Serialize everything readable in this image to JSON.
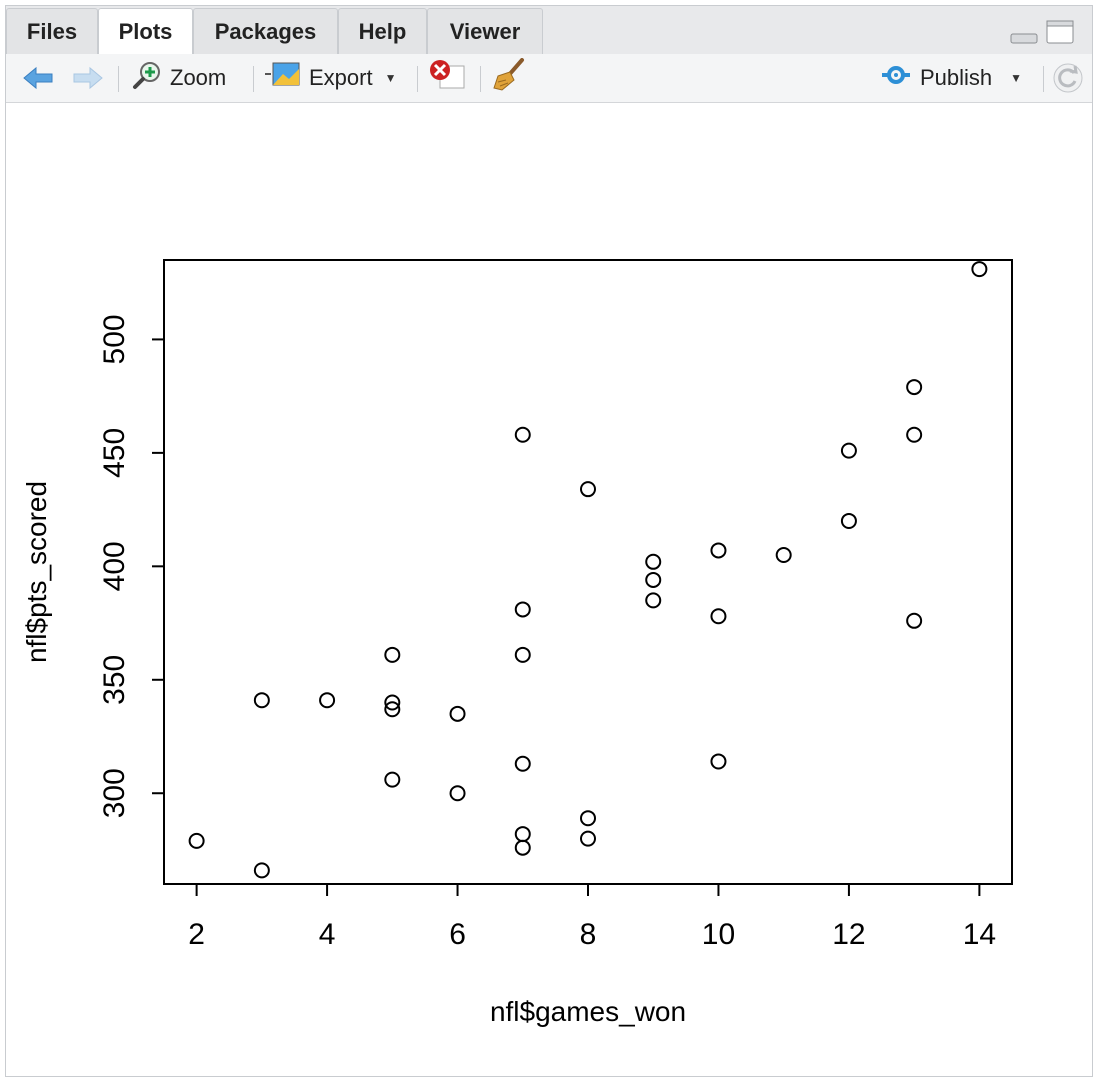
{
  "tabs": [
    "Files",
    "Plots",
    "Packages",
    "Help",
    "Viewer"
  ],
  "active_tab": "Plots",
  "toolbar": {
    "zoom_label": "Zoom",
    "export_label": "Export",
    "publish_label": "Publish"
  },
  "chart_data": {
    "type": "scatter",
    "xlabel": "nfl$games_won",
    "ylabel": "nfl$pts_scored",
    "xlim": [
      1.5,
      14.5
    ],
    "ylim": [
      260,
      535
    ],
    "xticks": [
      2,
      4,
      6,
      8,
      10,
      12,
      14
    ],
    "yticks": [
      300,
      350,
      400,
      450,
      500
    ],
    "points": [
      {
        "x": 2,
        "y": 279
      },
      {
        "x": 3,
        "y": 341
      },
      {
        "x": 3,
        "y": 266
      },
      {
        "x": 4,
        "y": 341
      },
      {
        "x": 5,
        "y": 361
      },
      {
        "x": 5,
        "y": 340
      },
      {
        "x": 5,
        "y": 337
      },
      {
        "x": 5,
        "y": 306
      },
      {
        "x": 6,
        "y": 335
      },
      {
        "x": 6,
        "y": 300
      },
      {
        "x": 7,
        "y": 458
      },
      {
        "x": 7,
        "y": 381
      },
      {
        "x": 7,
        "y": 361
      },
      {
        "x": 7,
        "y": 313
      },
      {
        "x": 7,
        "y": 282
      },
      {
        "x": 7,
        "y": 276
      },
      {
        "x": 8,
        "y": 434
      },
      {
        "x": 8,
        "y": 289
      },
      {
        "x": 8,
        "y": 280
      },
      {
        "x": 9,
        "y": 402
      },
      {
        "x": 9,
        "y": 394
      },
      {
        "x": 9,
        "y": 385
      },
      {
        "x": 10,
        "y": 407
      },
      {
        "x": 10,
        "y": 378
      },
      {
        "x": 10,
        "y": 314
      },
      {
        "x": 11,
        "y": 405
      },
      {
        "x": 12,
        "y": 451
      },
      {
        "x": 12,
        "y": 420
      },
      {
        "x": 13,
        "y": 479
      },
      {
        "x": 13,
        "y": 458
      },
      {
        "x": 13,
        "y": 376
      },
      {
        "x": 14,
        "y": 531
      }
    ]
  }
}
